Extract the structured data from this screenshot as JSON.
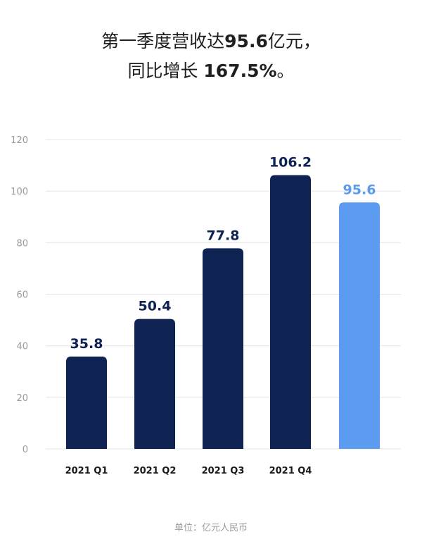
{
  "headline": {
    "line1_prefix": "第一季度营收达",
    "line1_value": "95.6",
    "line1_suffix": "亿元，",
    "line2_prefix": "同比增长 ",
    "line2_value": "167.5%",
    "line2_suffix": "。"
  },
  "unit_note": "单位：亿元人民币",
  "chart_data": {
    "type": "bar",
    "categories": [
      "2021 Q1",
      "2021 Q2",
      "2021 Q3",
      "2021 Q4",
      ""
    ],
    "values": [
      35.8,
      50.4,
      77.8,
      106.2,
      95.6
    ],
    "value_labels": [
      "35.8",
      "50.4",
      "77.8",
      "106.2",
      "95.6"
    ],
    "ylim": [
      0,
      120
    ],
    "yticks": [
      0,
      20,
      40,
      60,
      80,
      100,
      120
    ],
    "grid": true,
    "colors": {
      "bar": "#0e2352",
      "highlight_bar": "#5b9bf0",
      "label": "#0e2352",
      "highlight_label": "#5b9bf0",
      "grid": "#e4e4e4",
      "tick": "#9a9a9a"
    },
    "highlight_index": 4
  }
}
